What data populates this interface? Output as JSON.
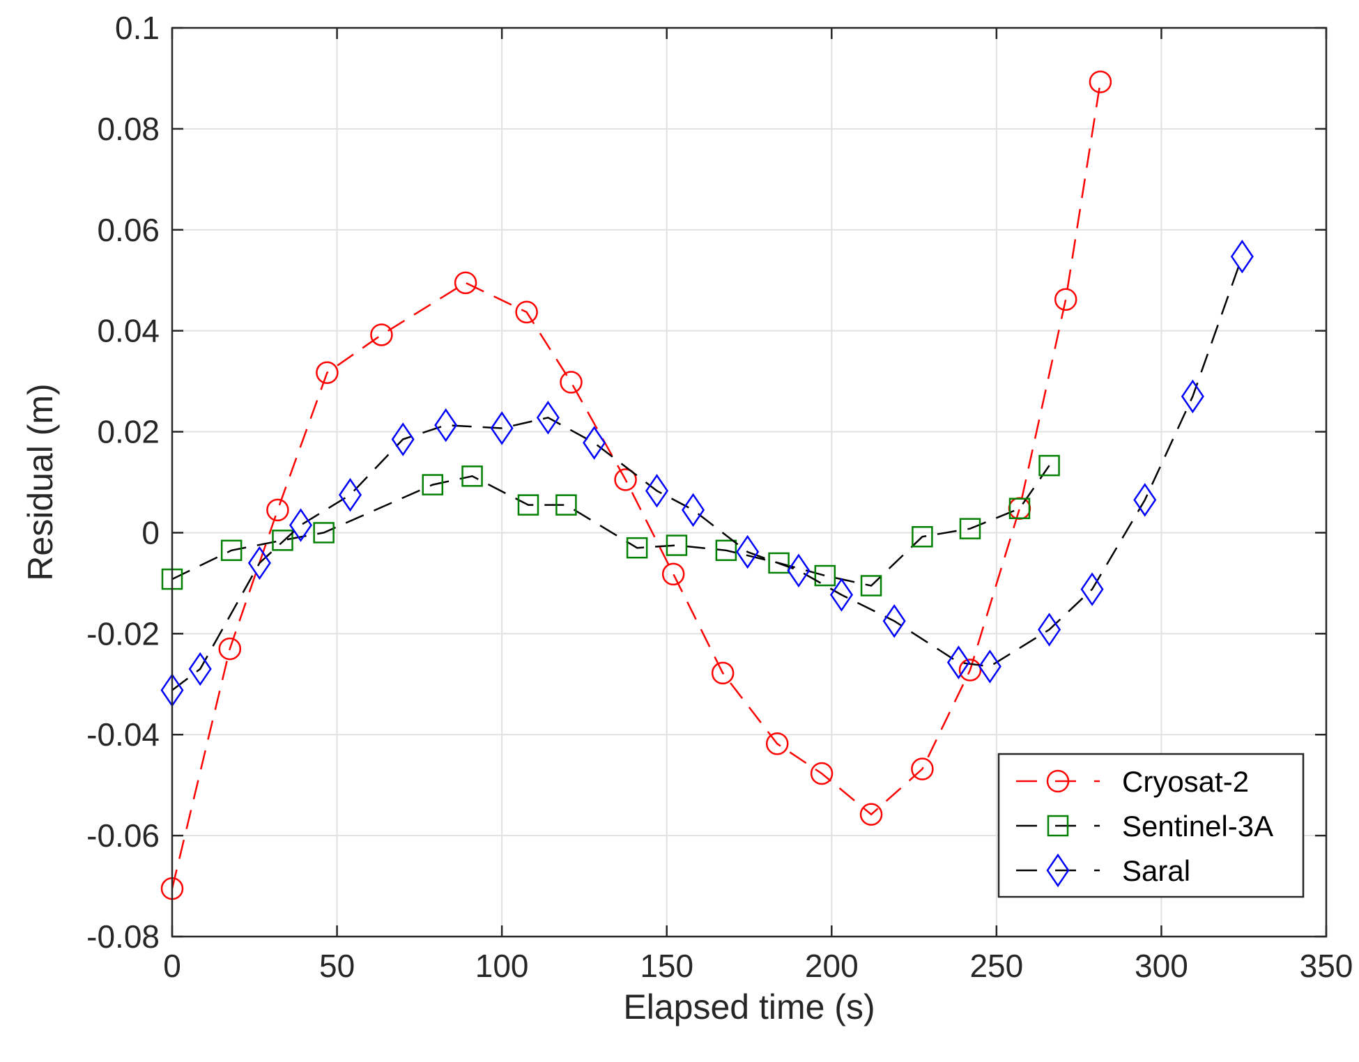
{
  "chart_data": {
    "type": "line",
    "title": "",
    "xlabel": "Elapsed time (s)",
    "ylabel": "Residual (m)",
    "xlim": [
      0,
      350
    ],
    "ylim": [
      -0.08,
      0.1
    ],
    "xticks": [
      0,
      50,
      100,
      150,
      200,
      250,
      300,
      350
    ],
    "xtick_labels": [
      "0",
      "50",
      "100",
      "150",
      "200",
      "250",
      "300",
      "350"
    ],
    "yticks": [
      -0.08,
      -0.06,
      -0.04,
      -0.02,
      0,
      0.02,
      0.04,
      0.06,
      0.08,
      0.1
    ],
    "ytick_labels": [
      "-0.08",
      "-0.06",
      "-0.04",
      "-0.02",
      "0",
      "0.02",
      "0.04",
      "0.06",
      "0.08",
      "0.1"
    ],
    "grid": true,
    "legend_position": "bottom-right",
    "series": [
      {
        "name": "Cryosat-2",
        "line_color": "#ff0000",
        "marker_color": "#ff0000",
        "marker": "circle",
        "x": [
          0,
          17.5,
          32,
          47,
          63.5,
          89,
          107.5,
          121,
          137.5,
          152,
          167,
          183.5,
          197,
          212,
          227.5,
          242,
          257,
          271,
          281.5
        ],
        "y": [
          -0.0705,
          -0.023,
          0.0045,
          0.0317,
          0.0392,
          0.0495,
          0.0437,
          0.0298,
          0.0105,
          -0.0082,
          -0.0278,
          -0.0418,
          -0.0477,
          -0.0558,
          -0.0468,
          -0.0272,
          0.0048,
          0.0462,
          0.0893
        ]
      },
      {
        "name": "Sentinel-3A",
        "line_color": "#000000",
        "marker_color": "#008000",
        "marker": "square",
        "x": [
          0,
          18,
          33.5,
          46,
          79,
          91,
          108,
          119.5,
          141,
          153,
          168,
          184,
          198,
          212,
          227.5,
          242,
          257,
          266
        ],
        "y": [
          -0.0092,
          -0.0035,
          -0.0015,
          0,
          0.0095,
          0.0112,
          0.0055,
          0.0055,
          -0.003,
          -0.0025,
          -0.0035,
          -0.006,
          -0.0085,
          -0.0105,
          -0.0008,
          0.0008,
          0.0048,
          0.0133
        ]
      },
      {
        "name": "Saral",
        "line_color": "#000000",
        "marker_color": "#0000ff",
        "marker": "diamond",
        "x": [
          0,
          8.5,
          26.5,
          39,
          54,
          70,
          83,
          100,
          114,
          128,
          147,
          158,
          174.5,
          190,
          203,
          219,
          238.5,
          248,
          266,
          279,
          295,
          309.5,
          324.5
        ],
        "y": [
          -0.0312,
          -0.027,
          -0.006,
          0.0015,
          0.0075,
          0.0185,
          0.0213,
          0.0207,
          0.0228,
          0.0178,
          0.0083,
          0.0045,
          -0.0038,
          -0.0075,
          -0.0123,
          -0.0175,
          -0.0257,
          -0.0265,
          -0.0192,
          -0.0112,
          0.0065,
          0.027,
          0.0547
        ]
      }
    ]
  }
}
